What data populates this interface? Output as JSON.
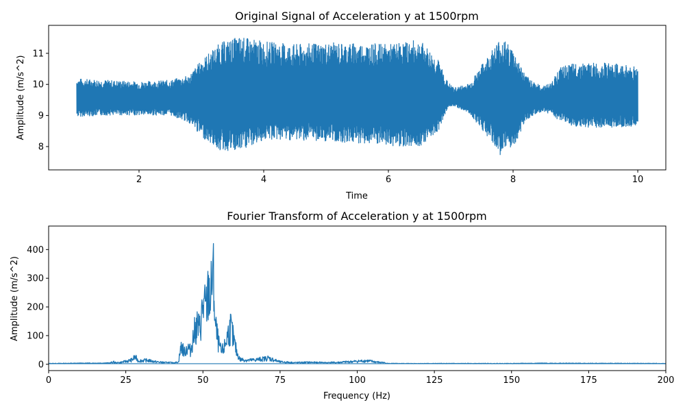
{
  "colors": {
    "series": "#1f77b4",
    "axis": "#000000",
    "background": "#ffffff"
  },
  "chart_data": [
    {
      "type": "line",
      "title": "Original Signal of Acceleration y at 1500rpm",
      "xlabel": "Time",
      "ylabel": "Amplitude (m/s^2)",
      "xlim": [
        0.55,
        10.45
      ],
      "ylim": [
        7.25,
        11.9
      ],
      "xticks": [
        2,
        4,
        6,
        8,
        10
      ],
      "yticks": [
        8,
        9,
        10,
        11
      ],
      "grid": false,
      "legend": "none",
      "mean": 9.5,
      "envelope": {
        "t": [
          1.0,
          1.5,
          2.0,
          2.5,
          2.8,
          3.0,
          3.3,
          3.6,
          4.0,
          4.5,
          5.0,
          5.5,
          6.0,
          6.5,
          6.8,
          6.95,
          7.05,
          7.3,
          7.55,
          7.8,
          8.0,
          8.2,
          8.45,
          8.6,
          8.75,
          9.0,
          9.5,
          10.0
        ],
        "upper": [
          10.2,
          10.15,
          10.1,
          10.15,
          10.3,
          10.8,
          11.35,
          11.55,
          11.4,
          11.3,
          11.35,
          11.35,
          11.3,
          11.45,
          10.8,
          10.1,
          9.9,
          10.05,
          10.8,
          11.55,
          11.15,
          10.3,
          9.95,
          10.05,
          10.55,
          10.7,
          10.7,
          10.6
        ],
        "lower": [
          8.95,
          9.0,
          9.0,
          9.0,
          8.75,
          8.3,
          7.85,
          7.8,
          8.2,
          8.2,
          8.15,
          8.1,
          8.0,
          8.0,
          8.5,
          9.25,
          9.3,
          9.05,
          8.4,
          7.7,
          7.9,
          8.85,
          9.1,
          9.05,
          8.8,
          8.6,
          8.6,
          8.65
        ]
      }
    },
    {
      "type": "line",
      "title": "Fourier Transform of Acceleration y at 1500rpm",
      "xlabel": "Frequency (Hz)",
      "ylabel": "Amplitude (m/s^2)",
      "xlim": [
        0,
        200
      ],
      "ylim": [
        -22,
        482
      ],
      "xticks": [
        0,
        25,
        50,
        75,
        100,
        125,
        150,
        175,
        200
      ],
      "yticks": [
        0,
        100,
        200,
        300,
        400
      ],
      "grid": false,
      "legend": "none",
      "spectrum": [
        [
          0,
          3
        ],
        [
          10,
          4
        ],
        [
          20,
          5
        ],
        [
          21,
          12
        ],
        [
          22,
          5
        ],
        [
          25,
          15
        ],
        [
          27,
          22
        ],
        [
          28,
          38
        ],
        [
          29,
          18
        ],
        [
          32,
          20
        ],
        [
          35,
          12
        ],
        [
          40,
          6
        ],
        [
          42,
          8
        ],
        [
          43,
          95
        ],
        [
          44,
          60
        ],
        [
          45,
          90
        ],
        [
          46,
          70
        ],
        [
          47,
          150
        ],
        [
          48,
          200
        ],
        [
          49,
          180
        ],
        [
          50,
          300
        ],
        [
          51,
          280
        ],
        [
          52,
          390
        ],
        [
          52.5,
          320
        ],
        [
          53,
          460
        ],
        [
          53.5,
          420
        ],
        [
          54,
          200
        ],
        [
          55,
          110
        ],
        [
          56,
          60
        ],
        [
          57,
          90
        ],
        [
          58,
          150
        ],
        [
          59,
          190
        ],
        [
          60,
          120
        ],
        [
          61,
          60
        ],
        [
          62,
          25
        ],
        [
          65,
          20
        ],
        [
          70,
          28
        ],
        [
          71,
          32
        ],
        [
          75,
          12
        ],
        [
          80,
          8
        ],
        [
          85,
          10
        ],
        [
          90,
          6
        ],
        [
          100,
          15
        ],
        [
          103,
          18
        ],
        [
          107,
          10
        ],
        [
          110,
          3
        ],
        [
          150,
          3
        ],
        [
          160,
          4
        ],
        [
          200,
          3
        ]
      ]
    }
  ]
}
